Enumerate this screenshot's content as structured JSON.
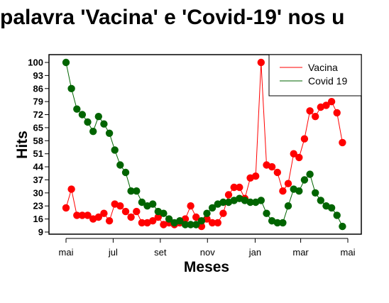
{
  "chart_data": {
    "type": "line",
    "title": "palavra 'Vacina' e 'Covid-19' nos u",
    "xlabel": "Meses",
    "ylabel": "Hits",
    "x_ticks": [
      {
        "label": "mai",
        "week": 0
      },
      {
        "label": "jul",
        "week": 8.7
      },
      {
        "label": "set",
        "week": 17.4
      },
      {
        "label": "nov",
        "week": 26.1
      },
      {
        "label": "jan",
        "week": 34.9
      },
      {
        "label": "mar",
        "week": 43.3
      },
      {
        "label": "mai",
        "week": 52
      }
    ],
    "y_ticks": [
      9,
      16,
      23,
      30,
      37,
      44,
      51,
      58,
      65,
      72,
      79,
      86,
      93,
      100
    ],
    "ylim": [
      9,
      100
    ],
    "legend_position": "top-right",
    "x": [
      0,
      1,
      2,
      3,
      4,
      5,
      6,
      7,
      8,
      9,
      10,
      11,
      12,
      13,
      14,
      15,
      16,
      17,
      18,
      19,
      20,
      21,
      22,
      23,
      24,
      25,
      26,
      27,
      28,
      29,
      30,
      31,
      32,
      33,
      34,
      35,
      36,
      37,
      38,
      39,
      40,
      41,
      42,
      43,
      44,
      45,
      46,
      47,
      48,
      49,
      50,
      51,
      52
    ],
    "series": [
      {
        "name": "Vacina",
        "color": "#ff0000",
        "values": [
          22,
          32,
          18,
          18,
          18,
          16,
          17,
          19,
          15,
          24,
          23,
          20,
          17,
          20,
          14,
          14,
          15,
          17,
          13,
          14,
          13,
          14,
          16,
          23,
          17,
          12,
          16,
          14,
          14,
          19,
          29,
          33,
          33,
          27,
          38,
          39,
          100,
          45,
          44,
          41,
          31,
          35,
          51,
          49,
          59,
          74,
          71,
          76,
          77,
          79,
          73,
          57,
          null
        ]
      },
      {
        "name": "Covid 19",
        "color": "#006400",
        "values": [
          100,
          86,
          75,
          72,
          68,
          63,
          71,
          67,
          62,
          53,
          45,
          41,
          31,
          31,
          25,
          23,
          24,
          20,
          19,
          16,
          14,
          15,
          13,
          13,
          13,
          15,
          19,
          22,
          24,
          25,
          25,
          26,
          27,
          26,
          25,
          25,
          26,
          19,
          15,
          14,
          14,
          23,
          32,
          31,
          37,
          40,
          30,
          26,
          23,
          22,
          18,
          12,
          null
        ]
      }
    ]
  }
}
